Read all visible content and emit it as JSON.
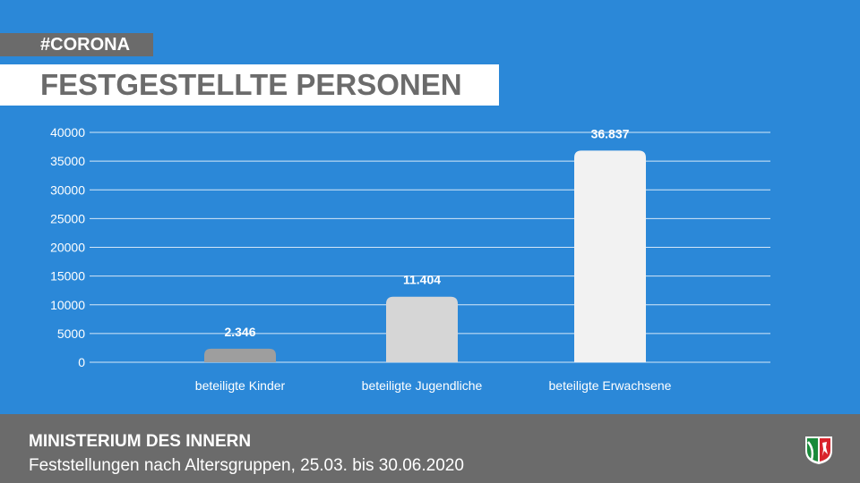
{
  "header": {
    "tag": "#CORONA",
    "title": "FESTGESTELLTE PERSONEN"
  },
  "footer": {
    "ministry": "MINISTERIUM DES INNERN",
    "subtitle": "Feststellungen nach Altersgruppen, 25.03. bis 30.06.2020",
    "logo": "nrw-coat-of-arms"
  },
  "chart_data": {
    "type": "bar",
    "title": "FESTGESTELLTE PERSONEN",
    "categories": [
      "beteiligte Kinder",
      "beteiligte Jugendliche",
      "beteiligte Erwachsene"
    ],
    "values": [
      2346,
      11404,
      36837
    ],
    "data_labels": [
      "2.346",
      "11.404",
      "36.837"
    ],
    "bar_colors": [
      "#9e9e9e",
      "#d6d6d6",
      "#f2f2f2"
    ],
    "yticks": [
      0,
      5000,
      10000,
      15000,
      20000,
      25000,
      30000,
      35000,
      40000
    ],
    "ylim": [
      0,
      40000
    ],
    "grid": true,
    "xlabel": "",
    "ylabel": ""
  }
}
